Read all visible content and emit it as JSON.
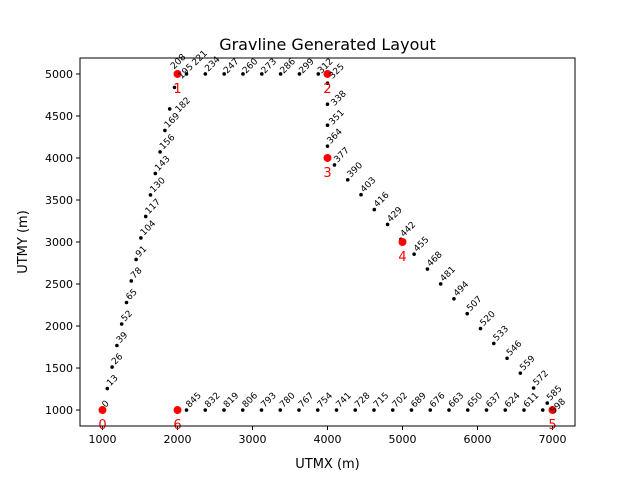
{
  "chart_data": {
    "type": "scatter",
    "title": "Gravline Generated Layout",
    "xlabel": "UTMX (m)",
    "ylabel": "UTMY (m)",
    "xlim": [
      700,
      7300
    ],
    "ylim": [
      810,
      5190
    ],
    "xticks": [
      1000,
      2000,
      3000,
      4000,
      5000,
      6000,
      7000
    ],
    "yticks": [
      1000,
      1500,
      2000,
      2500,
      3000,
      3500,
      4000,
      4500,
      5000
    ],
    "grid": false,
    "colors": {
      "waypoints": "#ff0000",
      "nodes": "#000000"
    },
    "waypoints": [
      {
        "label": "0",
        "x": 1000,
        "y": 1000
      },
      {
        "label": "1",
        "x": 2000,
        "y": 5000
      },
      {
        "label": "2",
        "x": 4000,
        "y": 5000
      },
      {
        "label": "3",
        "x": 4000,
        "y": 4000
      },
      {
        "label": "4",
        "x": 5000,
        "y": 3000
      },
      {
        "label": "5",
        "x": 7000,
        "y": 1000
      },
      {
        "label": "6",
        "x": 2000,
        "y": 1000
      }
    ],
    "nodes": [
      {
        "label": "0",
        "x": 1000,
        "y": 1000
      },
      {
        "label": "13",
        "x": 1064,
        "y": 1256
      },
      {
        "label": "26",
        "x": 1128,
        "y": 1512
      },
      {
        "label": "39",
        "x": 1192,
        "y": 1768
      },
      {
        "label": "52",
        "x": 1256,
        "y": 2024
      },
      {
        "label": "65",
        "x": 1320,
        "y": 2280
      },
      {
        "label": "78",
        "x": 1384,
        "y": 2536
      },
      {
        "label": "91",
        "x": 1448,
        "y": 2792
      },
      {
        "label": "104",
        "x": 1512,
        "y": 3048
      },
      {
        "label": "117",
        "x": 1576,
        "y": 3304
      },
      {
        "label": "130",
        "x": 1640,
        "y": 3560
      },
      {
        "label": "143",
        "x": 1704,
        "y": 3816
      },
      {
        "label": "156",
        "x": 1768,
        "y": 4072
      },
      {
        "label": "169",
        "x": 1832,
        "y": 4328
      },
      {
        "label": "182",
        "x": 1896,
        "y": 4584
      },
      {
        "label": "195",
        "x": 1960,
        "y": 4840
      },
      {
        "label": "208",
        "x": 1995,
        "y": 4980
      },
      {
        "label": "221",
        "x": 2120,
        "y": 5000
      },
      {
        "label": "234",
        "x": 2371,
        "y": 5000
      },
      {
        "label": "247",
        "x": 2622,
        "y": 5000
      },
      {
        "label": "260",
        "x": 2873,
        "y": 5000
      },
      {
        "label": "273",
        "x": 3124,
        "y": 5000
      },
      {
        "label": "286",
        "x": 3375,
        "y": 5000
      },
      {
        "label": "299",
        "x": 3626,
        "y": 5000
      },
      {
        "label": "312",
        "x": 3877,
        "y": 5000
      },
      {
        "label": "325",
        "x": 4000,
        "y": 4890
      },
      {
        "label": "338",
        "x": 4000,
        "y": 4640
      },
      {
        "label": "351",
        "x": 4000,
        "y": 4390
      },
      {
        "label": "364",
        "x": 4000,
        "y": 4140
      },
      {
        "label": "377",
        "x": 4093,
        "y": 3917
      },
      {
        "label": "390",
        "x": 4270,
        "y": 3740
      },
      {
        "label": "403",
        "x": 4447,
        "y": 3563
      },
      {
        "label": "416",
        "x": 4624,
        "y": 3386
      },
      {
        "label": "429",
        "x": 4801,
        "y": 3209
      },
      {
        "label": "442",
        "x": 4978,
        "y": 3032
      },
      {
        "label": "455",
        "x": 5155,
        "y": 2855
      },
      {
        "label": "468",
        "x": 5332,
        "y": 2678
      },
      {
        "label": "481",
        "x": 5509,
        "y": 2501
      },
      {
        "label": "494",
        "x": 5686,
        "y": 2324
      },
      {
        "label": "507",
        "x": 5863,
        "y": 2147
      },
      {
        "label": "520",
        "x": 6040,
        "y": 1970
      },
      {
        "label": "533",
        "x": 6217,
        "y": 1793
      },
      {
        "label": "546",
        "x": 6394,
        "y": 1616
      },
      {
        "label": "559",
        "x": 6571,
        "y": 1439
      },
      {
        "label": "572",
        "x": 6748,
        "y": 1262
      },
      {
        "label": "585",
        "x": 6930,
        "y": 1083
      },
      {
        "label": "598",
        "x": 6870,
        "y": 1000
      },
      {
        "label": "611",
        "x": 6620,
        "y": 1000
      },
      {
        "label": "624",
        "x": 6370,
        "y": 1000
      },
      {
        "label": "637",
        "x": 6120,
        "y": 1000
      },
      {
        "label": "650",
        "x": 5870,
        "y": 1000
      },
      {
        "label": "663",
        "x": 5620,
        "y": 1000
      },
      {
        "label": "676",
        "x": 5370,
        "y": 1000
      },
      {
        "label": "689",
        "x": 5120,
        "y": 1000
      },
      {
        "label": "702",
        "x": 4870,
        "y": 1000
      },
      {
        "label": "715",
        "x": 4620,
        "y": 1000
      },
      {
        "label": "728",
        "x": 4370,
        "y": 1000
      },
      {
        "label": "741",
        "x": 4120,
        "y": 1000
      },
      {
        "label": "754",
        "x": 3870,
        "y": 1000
      },
      {
        "label": "767",
        "x": 3620,
        "y": 1000
      },
      {
        "label": "780",
        "x": 3370,
        "y": 1000
      },
      {
        "label": "793",
        "x": 3120,
        "y": 1000
      },
      {
        "label": "806",
        "x": 2870,
        "y": 1000
      },
      {
        "label": "819",
        "x": 2620,
        "y": 1000
      },
      {
        "label": "832",
        "x": 2370,
        "y": 1000
      },
      {
        "label": "845",
        "x": 2120,
        "y": 1000
      }
    ]
  }
}
